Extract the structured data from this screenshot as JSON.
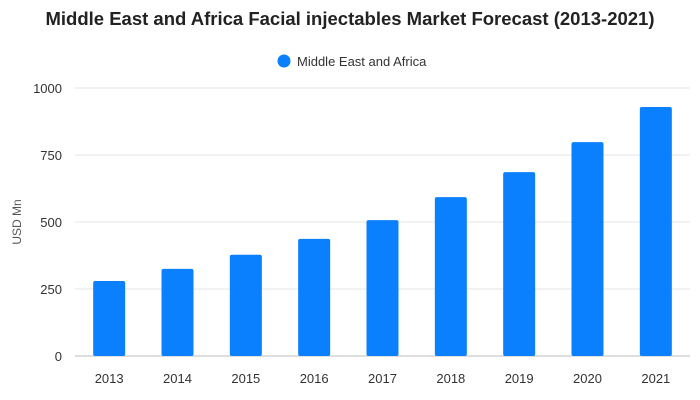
{
  "chart_data": {
    "type": "bar",
    "title": "Middle East and Africa Facial injectables Market Forecast (2013-2021)",
    "categories": [
      "2013",
      "2014",
      "2015",
      "2016",
      "2017",
      "2018",
      "2019",
      "2020",
      "2021"
    ],
    "series": [
      {
        "name": "Middle East and Africa",
        "color": "#0a80ff",
        "values": [
          280,
          325,
          378,
          437,
          507,
          593,
          686,
          798,
          929
        ]
      }
    ],
    "xlabel": "",
    "ylabel": "USD Mn",
    "ylim": [
      0,
      1000
    ],
    "yticks": [
      "0",
      "250",
      "500",
      "750",
      "1000"
    ],
    "grid": true,
    "legend_position": "top-center"
  }
}
